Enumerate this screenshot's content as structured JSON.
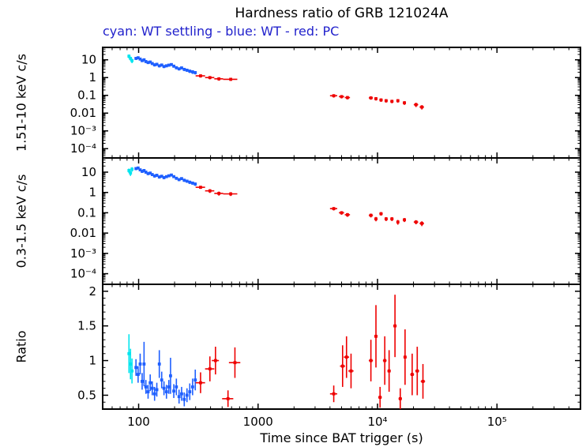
{
  "title": "Hardness ratio of GRB 121024A",
  "subtitle": "cyan: WT settling - blue: WT - red: PC",
  "colors": {
    "cyan": "#00e5ee",
    "blue": "#1e5fff",
    "red": "#ee0000",
    "subtitle": "#2222cc",
    "frame": "#000000",
    "background": "#ffffff"
  },
  "axes": {
    "x": {
      "label": "Time since BAT trigger (s)",
      "scale": "log",
      "min": 50,
      "max": 500000,
      "ticks": [
        {
          "v": 100,
          "label": "100"
        },
        {
          "v": 1000,
          "label": "1000"
        },
        {
          "v": 10000,
          "label": "10⁴"
        },
        {
          "v": 100000,
          "label": "10⁵"
        }
      ]
    }
  },
  "chart_data": [
    {
      "name": "hard-band-rate",
      "type": "scatter",
      "ylabel": "1.51-10 keV c/s",
      "yscale": "log",
      "ymin": 3e-05,
      "ymax": 50,
      "yticks": [
        {
          "v": 10,
          "label": "10"
        },
        {
          "v": 1,
          "label": "1"
        },
        {
          "v": 0.1,
          "label": "0.1"
        },
        {
          "v": 0.01,
          "label": "0.01"
        },
        {
          "v": 0.001,
          "label": "10⁻³"
        },
        {
          "v": 0.0001,
          "label": "10⁻⁴"
        }
      ],
      "series": [
        {
          "key": "wt-settling",
          "label": "WT settling",
          "color": "cyan",
          "points": [
            [
              83,
              16,
              1.5,
              4
            ],
            [
              85.5,
              12,
              1.5,
              3
            ],
            [
              88,
              9,
              1.5,
              2.5
            ]
          ]
        },
        {
          "key": "wt",
          "label": "WT",
          "color": "blue",
          "points": [
            [
              95,
              12,
              1,
              2
            ],
            [
              99,
              13,
              1,
              2
            ],
            [
              103,
              11,
              1,
              1.8
            ],
            [
              107,
              9,
              1,
              1.5
            ],
            [
              111,
              10,
              1,
              1.6
            ],
            [
              115,
              8,
              1,
              1.4
            ],
            [
              120,
              7,
              1,
              1.2
            ],
            [
              125,
              7.5,
              1,
              1.2
            ],
            [
              130,
              6.2,
              1,
              1.1
            ],
            [
              136,
              5.2,
              1,
              1
            ],
            [
              142,
              5.6,
              1,
              1
            ],
            [
              149,
              4.6,
              1,
              0.9
            ],
            [
              156,
              5.1,
              1,
              0.9
            ],
            [
              163,
              4.2,
              1,
              0.8
            ],
            [
              171,
              4.6,
              1,
              0.8
            ],
            [
              179,
              5,
              1,
              0.8
            ],
            [
              188,
              5.4,
              1,
              0.9
            ],
            [
              197,
              4.4,
              1,
              0.8
            ],
            [
              207,
              3.6,
              1,
              0.7
            ],
            [
              218,
              3.1,
              1,
              0.6
            ],
            [
              229,
              3.5,
              1,
              0.6
            ],
            [
              241,
              2.9,
              1,
              0.6
            ],
            [
              254,
              2.6,
              1,
              0.5
            ],
            [
              268,
              2.3,
              1,
              0.5
            ],
            [
              283,
              2.1,
              1,
              0.5
            ],
            [
              298,
              1.9,
              1,
              0.4
            ]
          ]
        },
        {
          "key": "pc",
          "label": "PC",
          "color": "red",
          "points": [
            [
              330,
              1.25,
              30,
              0.25
            ],
            [
              395,
              1,
              35,
              0.2
            ],
            [
              470,
              0.85,
              40,
              0.18
            ],
            [
              590,
              0.8,
              80,
              0.15
            ],
            [
              4300,
              0.095,
              300,
              0.02
            ],
            [
              5000,
              0.085,
              250,
              0.018
            ],
            [
              5600,
              0.075,
              280,
              0.016
            ],
            [
              8800,
              0.072,
              350,
              0.015
            ],
            [
              9700,
              0.065,
              300,
              0.014
            ],
            [
              10700,
              0.055,
              350,
              0.012
            ],
            [
              11800,
              0.05,
              350,
              0.011
            ],
            [
              13200,
              0.046,
              400,
              0.01
            ],
            [
              14800,
              0.05,
              400,
              0.011
            ],
            [
              16800,
              0.038,
              500,
              0.009
            ],
            [
              21000,
              0.03,
              900,
              0.008
            ],
            [
              23500,
              0.022,
              1000,
              0.006
            ]
          ]
        }
      ]
    },
    {
      "name": "soft-band-rate",
      "type": "scatter",
      "ylabel": "0.3-1.5 keV c/s",
      "yscale": "log",
      "ymin": 3e-05,
      "ymax": 50,
      "yticks": [
        {
          "v": 10,
          "label": "10"
        },
        {
          "v": 1,
          "label": "1"
        },
        {
          "v": 0.1,
          "label": "0.1"
        },
        {
          "v": 0.01,
          "label": "0.01"
        },
        {
          "v": 0.001,
          "label": "10⁻³"
        },
        {
          "v": 0.0001,
          "label": "10⁻⁴"
        }
      ],
      "series": [
        {
          "key": "wt-settling",
          "label": "WT settling",
          "color": "cyan",
          "points": [
            [
              83,
              12,
              1.5,
              3
            ],
            [
              85.5,
              9,
              1.5,
              2.5
            ],
            [
              88,
              14,
              1.5,
              3.5
            ]
          ]
        },
        {
          "key": "wt",
          "label": "WT",
          "color": "blue",
          "points": [
            [
              95,
              15,
              1,
              2.5
            ],
            [
              99,
              16,
              1,
              2.5
            ],
            [
              103,
              13,
              1,
              2
            ],
            [
              107,
              11,
              1,
              1.8
            ],
            [
              111,
              12,
              1,
              1.9
            ],
            [
              115,
              10,
              1,
              1.6
            ],
            [
              120,
              8.5,
              1,
              1.4
            ],
            [
              125,
              9,
              1,
              1.4
            ],
            [
              130,
              7.6,
              1,
              1.2
            ],
            [
              136,
              6.5,
              1,
              1.1
            ],
            [
              142,
              7,
              1,
              1.1
            ],
            [
              149,
              5.8,
              1,
              1
            ],
            [
              156,
              6.3,
              1,
              1
            ],
            [
              163,
              5.4,
              1,
              0.9
            ],
            [
              171,
              6,
              1,
              0.9
            ],
            [
              179,
              6.6,
              1,
              1
            ],
            [
              188,
              7.2,
              1,
              1
            ],
            [
              197,
              6,
              1,
              0.9
            ],
            [
              207,
              5,
              1,
              0.8
            ],
            [
              218,
              4.3,
              1,
              0.7
            ],
            [
              229,
              4.8,
              1,
              0.7
            ],
            [
              241,
              4,
              1,
              0.7
            ],
            [
              254,
              3.6,
              1,
              0.6
            ],
            [
              268,
              3.2,
              1,
              0.6
            ],
            [
              283,
              2.9,
              1,
              0.5
            ],
            [
              298,
              2.6,
              1,
              0.5
            ]
          ]
        },
        {
          "key": "pc",
          "label": "PC",
          "color": "red",
          "points": [
            [
              330,
              1.8,
              30,
              0.3
            ],
            [
              395,
              1.2,
              35,
              0.25
            ],
            [
              470,
              0.9,
              40,
              0.2
            ],
            [
              590,
              0.85,
              80,
              0.18
            ],
            [
              4300,
              0.16,
              300,
              0.03
            ],
            [
              5000,
              0.1,
              250,
              0.02
            ],
            [
              5600,
              0.08,
              280,
              0.017
            ],
            [
              8800,
              0.075,
              350,
              0.016
            ],
            [
              9700,
              0.05,
              300,
              0.012
            ],
            [
              10700,
              0.09,
              350,
              0.018
            ],
            [
              11800,
              0.05,
              350,
              0.011
            ],
            [
              13200,
              0.05,
              400,
              0.011
            ],
            [
              14800,
              0.035,
              400,
              0.009
            ],
            [
              16800,
              0.045,
              500,
              0.01
            ],
            [
              21000,
              0.035,
              900,
              0.008
            ],
            [
              23500,
              0.03,
              1000,
              0.008
            ]
          ]
        }
      ]
    },
    {
      "name": "ratio",
      "type": "scatter",
      "ylabel": "Ratio",
      "yscale": "linear",
      "ymin": 0.3,
      "ymax": 2.1,
      "yticks": [
        {
          "v": 2,
          "label": "2"
        },
        {
          "v": 1.5,
          "label": "1.5"
        },
        {
          "v": 1,
          "label": "1"
        },
        {
          "v": 0.5,
          "label": "0.5"
        }
      ],
      "series": [
        {
          "key": "wt-settling",
          "label": "WT settling",
          "color": "cyan",
          "points": [
            [
              83,
              1.1,
              1.5,
              0.28
            ],
            [
              85.5,
              0.95,
              1.5,
              0.22
            ],
            [
              88,
              0.85,
              1.5,
              0.18
            ]
          ]
        },
        {
          "key": "wt",
          "label": "WT",
          "color": "blue",
          "points": [
            [
              95,
              0.9,
              1,
              0.12
            ],
            [
              99,
              0.8,
              1,
              0.12
            ],
            [
              103,
              0.95,
              1,
              0.15
            ],
            [
              107,
              0.7,
              1,
              0.12
            ],
            [
              111,
              0.95,
              1,
              0.32
            ],
            [
              115,
              0.62,
              1,
              0.1
            ],
            [
              120,
              0.55,
              1,
              0.1
            ],
            [
              125,
              0.68,
              1,
              0.12
            ],
            [
              130,
              0.6,
              1,
              0.1
            ],
            [
              136,
              0.52,
              1,
              0.1
            ],
            [
              142,
              0.58,
              1,
              0.1
            ],
            [
              149,
              0.95,
              1,
              0.2
            ],
            [
              156,
              0.72,
              1,
              0.12
            ],
            [
              163,
              0.6,
              1,
              0.1
            ],
            [
              171,
              0.55,
              1,
              0.1
            ],
            [
              179,
              0.62,
              1,
              0.1
            ],
            [
              185,
              0.78,
              1,
              0.26
            ],
            [
              197,
              0.56,
              1,
              0.1
            ],
            [
              207,
              0.62,
              1,
              0.12
            ],
            [
              218,
              0.48,
              1,
              0.1
            ],
            [
              229,
              0.52,
              1,
              0.1
            ],
            [
              241,
              0.44,
              1,
              0.1
            ],
            [
              254,
              0.5,
              1,
              0.1
            ],
            [
              268,
              0.55,
              1,
              0.12
            ],
            [
              283,
              0.62,
              1,
              0.12
            ],
            [
              298,
              0.72,
              1,
              0.15
            ]
          ]
        },
        {
          "key": "pc",
          "label": "PC",
          "color": "red",
          "points": [
            [
              330,
              0.68,
              30,
              0.15
            ],
            [
              395,
              0.88,
              35,
              0.18
            ],
            [
              440,
              1,
              30,
              0.2
            ],
            [
              560,
              0.45,
              60,
              0.12
            ],
            [
              640,
              0.97,
              70,
              0.22
            ],
            [
              4300,
              0.52,
              300,
              0.12
            ],
            [
              5100,
              0.92,
              250,
              0.3
            ],
            [
              5500,
              1.05,
              280,
              0.3
            ],
            [
              6000,
              0.85,
              300,
              0.25
            ],
            [
              8800,
              1,
              350,
              0.3
            ],
            [
              9700,
              1.35,
              300,
              0.45
            ],
            [
              10500,
              0.47,
              350,
              0.15
            ],
            [
              11500,
              1,
              400,
              0.35
            ],
            [
              12500,
              0.85,
              400,
              0.3
            ],
            [
              14000,
              1.5,
              450,
              0.45
            ],
            [
              15500,
              0.45,
              500,
              0.15
            ],
            [
              17000,
              1.05,
              500,
              0.4
            ],
            [
              19500,
              0.8,
              700,
              0.3
            ],
            [
              21500,
              0.85,
              800,
              0.35
            ],
            [
              24000,
              0.7,
              1000,
              0.25
            ]
          ]
        }
      ]
    }
  ]
}
